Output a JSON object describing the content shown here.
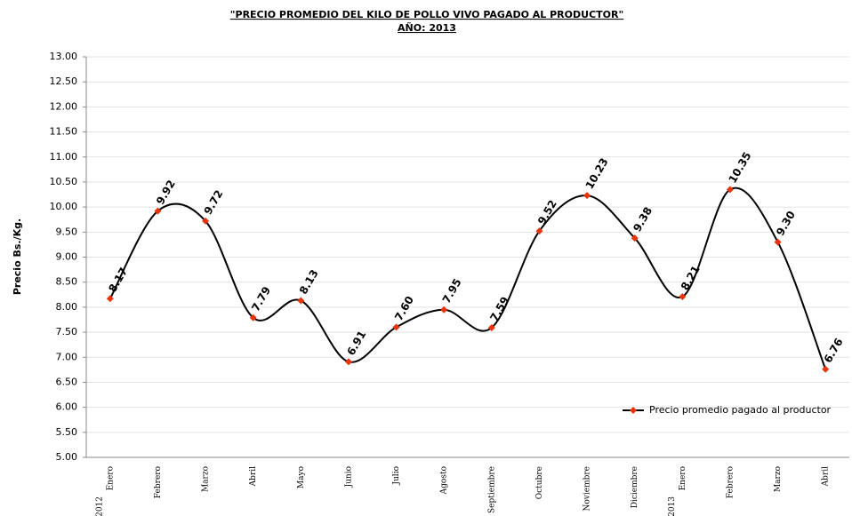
{
  "chart_data": {
    "type": "line",
    "title": "\"PRECIO PROMEDIO DEL KILO DE POLLO VIVO PAGADO AL PRODUCTOR\"",
    "subtitle": "AÑO: 2013",
    "y_label": "Precio Bs./Kg.",
    "categories": [
      "Enero",
      "Febrero",
      "Marzo",
      "Abril",
      "Mayo",
      "Junio",
      "Julio",
      "Agosto",
      "Septiembre",
      "Octubre",
      "Noviembre",
      "Diciembre",
      "Enero",
      "Febrero",
      "Marzo",
      "Abril"
    ],
    "years": [
      "2012",
      null,
      null,
      null,
      null,
      null,
      null,
      null,
      null,
      null,
      null,
      null,
      "2013",
      null,
      null,
      null
    ],
    "series": [
      {
        "name": "Precio promedio pagado al productor",
        "color": "#000000",
        "marker_color": "#e8340c",
        "values": [
          8.17,
          9.92,
          9.72,
          7.79,
          8.13,
          6.91,
          7.6,
          7.95,
          7.59,
          9.52,
          10.23,
          9.38,
          8.21,
          10.35,
          9.3,
          6.76
        ],
        "value_labels": [
          "8.17",
          "9.92",
          "9.72",
          "7.79",
          "8.13",
          "6.91",
          "7.60",
          "7.95",
          "7.59",
          "9.52",
          "10.23",
          "9.38",
          "8.21",
          "10.35",
          "9.30",
          "6.76"
        ]
      }
    ],
    "ylim": [
      5,
      13
    ],
    "yticks": [
      {
        "value": 5,
        "label": "5.00"
      },
      {
        "value": 5.5,
        "label": "5.50"
      },
      {
        "value": 6,
        "label": "6.00"
      },
      {
        "value": 6.5,
        "label": "6.50"
      },
      {
        "value": 7,
        "label": "7.00"
      },
      {
        "value": 7.5,
        "label": "7.50"
      },
      {
        "value": 8,
        "label": "8.00"
      },
      {
        "value": 8.5,
        "label": "8.50"
      },
      {
        "value": 9,
        "label": "9.00"
      },
      {
        "value": 9.5,
        "label": "9.50"
      },
      {
        "value": 10,
        "label": "10.00"
      },
      {
        "value": 10.5,
        "label": "10.50"
      },
      {
        "value": 11,
        "label": "11.00"
      },
      {
        "value": 11.5,
        "label": "11.50"
      },
      {
        "value": 12,
        "label": "12.00"
      },
      {
        "value": 12.5,
        "label": "12.50"
      },
      {
        "value": 13,
        "label": "13.00"
      }
    ],
    "grid": true,
    "smooth": true,
    "legend": "lower-right"
  }
}
